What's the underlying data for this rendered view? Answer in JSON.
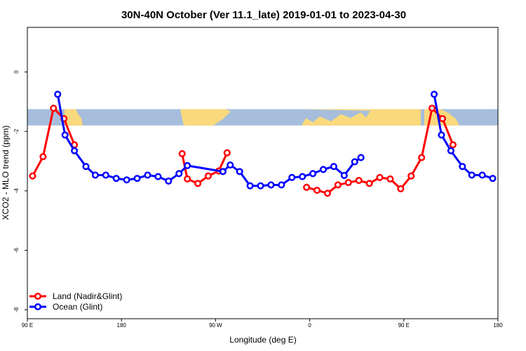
{
  "chart_data": {
    "type": "line",
    "title": "30N-40N October (Ver 11.1_late)   2019-01-01 to 2023-04-30",
    "xlabel": "Longitude (deg E)",
    "ylabel": "XCO2 - MLO trend (ppm)",
    "xlim": [
      90,
      540
    ],
    "ylim": [
      -8.3,
      1.5
    ],
    "x_ticks": [
      {
        "value": 90,
        "label": "90 E"
      },
      {
        "value": 180,
        "label": "180"
      },
      {
        "value": 270,
        "label": "90 W"
      },
      {
        "value": 360,
        "label": "0"
      },
      {
        "value": 450,
        "label": "90 E"
      },
      {
        "value": 540,
        "label": "180"
      }
    ],
    "y_ticks": [
      {
        "value": 0,
        "label": "0"
      },
      {
        "value": -2,
        "label": "-2"
      },
      {
        "value": -4,
        "label": "-4"
      },
      {
        "value": -6,
        "label": "-6"
      },
      {
        "value": -8,
        "label": "-8"
      }
    ],
    "legend_position": "bottom-left",
    "map_strip": {
      "y_range": [
        -1.25,
        -1.8
      ],
      "ocean_color": "#a6bedc",
      "land_color": "#fad97c"
    },
    "series": [
      {
        "name": "Land (Nadir&Glint)",
        "color": "#ff0000",
        "segments": [
          [
            [
              95,
              -3.5
            ],
            [
              105,
              -2.85
            ],
            [
              115,
              -1.22
            ],
            [
              125,
              -1.57
            ],
            [
              135,
              -2.45
            ]
          ],
          [
            [
              238,
              -2.75
            ],
            [
              243,
              -3.6
            ],
            [
              253,
              -3.75
            ],
            [
              263,
              -3.5
            ],
            [
              273,
              -3.33
            ],
            [
              281,
              -2.72
            ]
          ],
          [
            [
              357,
              -3.88
            ],
            [
              367,
              -3.98
            ],
            [
              377,
              -4.08
            ],
            [
              387,
              -3.8
            ],
            [
              397,
              -3.72
            ],
            [
              407,
              -3.65
            ],
            [
              417,
              -3.75
            ],
            [
              427,
              -3.55
            ],
            [
              437,
              -3.6
            ],
            [
              447,
              -3.93
            ],
            [
              457,
              -3.5
            ],
            [
              467,
              -2.88
            ],
            [
              477,
              -1.22
            ],
            [
              487,
              -1.57
            ],
            [
              497,
              -2.45
            ]
          ]
        ]
      },
      {
        "name": "Ocean (Glint)",
        "color": "#0000ff",
        "segments": [
          [
            [
              119,
              -0.75
            ],
            [
              126,
              -2.12
            ],
            [
              135,
              -2.65
            ],
            [
              146,
              -3.18
            ],
            [
              155,
              -3.47
            ],
            [
              165,
              -3.47
            ],
            [
              175,
              -3.58
            ],
            [
              185,
              -3.63
            ],
            [
              195,
              -3.58
            ],
            [
              205,
              -3.47
            ],
            [
              215,
              -3.52
            ],
            [
              225,
              -3.67
            ],
            [
              235,
              -3.42
            ],
            [
              243,
              -3.15
            ],
            [
              277,
              -3.35
            ],
            [
              284,
              -3.13
            ],
            [
              293,
              -3.35
            ],
            [
              303,
              -3.83
            ],
            [
              313,
              -3.83
            ],
            [
              323,
              -3.8
            ],
            [
              333,
              -3.8
            ],
            [
              343,
              -3.55
            ],
            [
              353,
              -3.52
            ],
            [
              363,
              -3.42
            ],
            [
              373,
              -3.28
            ],
            [
              383,
              -3.18
            ],
            [
              393,
              -3.48
            ],
            [
              403,
              -3.02
            ],
            [
              409,
              -2.88
            ]
          ],
          [
            [
              479,
              -0.75
            ],
            [
              486,
              -2.12
            ],
            [
              495,
              -2.65
            ],
            [
              506,
              -3.18
            ],
            [
              515,
              -3.47
            ],
            [
              525,
              -3.47
            ],
            [
              535,
              -3.58
            ]
          ]
        ]
      }
    ]
  }
}
